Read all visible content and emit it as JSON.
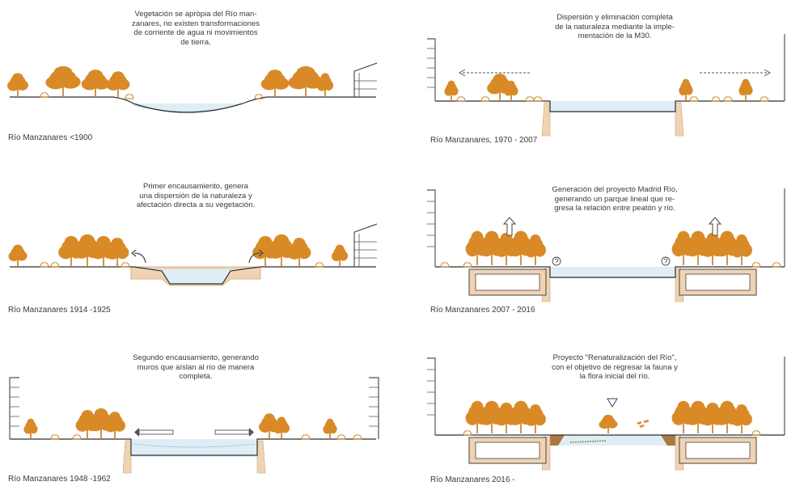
{
  "colors": {
    "tree": "#d98a27",
    "tree_dark": "#c77a1e",
    "water": "#dfeef6",
    "water_line": "#9ec8de",
    "ground": "#2f2f2f",
    "concrete": "#f0d3b3",
    "concrete_line": "#c9a27c",
    "building": "#555555"
  },
  "panels": [
    {
      "id": "p1900",
      "description": "Vegetación se apròpia del Río man-\nzanares, no existen transformaciones\nde corriente de agua ni movimientos\nde tierra.",
      "caption": "Río Manzanares <1900"
    },
    {
      "id": "p1914",
      "description": "Primer encausamiento, genera\nuna dispersión de la naturaleza y\nafectación directa a su vegetación.",
      "caption": "Río Manzanares 1914 -1925"
    },
    {
      "id": "p1948",
      "description": "Segundo encausamiento, generando\nmuros que aíslan al río de manera\ncompleta.",
      "caption": "Río Manzanares 1948 -1962"
    },
    {
      "id": "p1970",
      "description": "Dispersión y eliminación completa\nde la naturaleza mediante la imple-\nmentación de la M30.",
      "caption": "Río Manzanares, 1970 - 2007"
    },
    {
      "id": "p2007",
      "description": "Generación del proyecto Madrid Río,\ngenerando un parque lineal que re-\ngresa la relación entre peatón y río.",
      "caption": "Río Manzanares 2007 - 2016"
    },
    {
      "id": "p2016",
      "description": "Proyecto \"Renaturalización del Río\",\ncon el objetivo de regresar la fauna y\nla flora inicial del río.",
      "caption": "Río Manzanares 2016 -"
    }
  ]
}
